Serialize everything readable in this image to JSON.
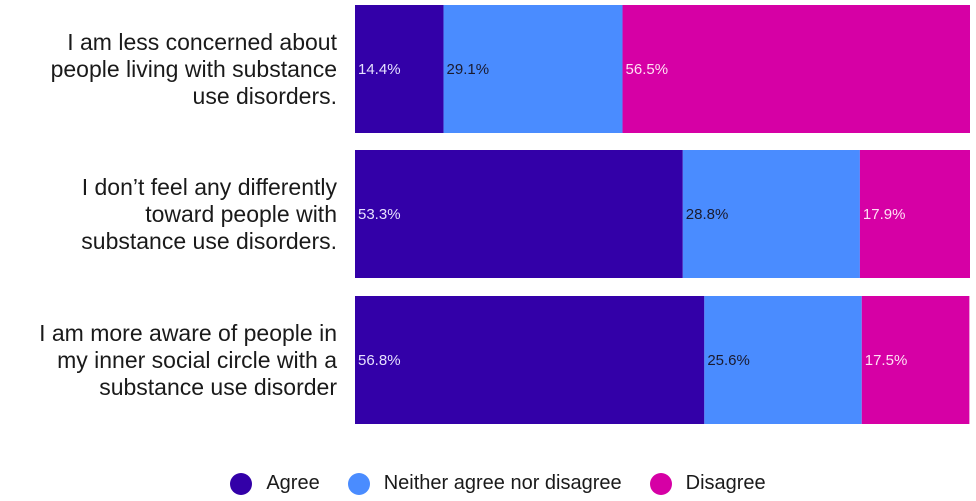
{
  "chart_data": {
    "type": "bar",
    "orientation": "horizontal",
    "stacked": true,
    "percent": true,
    "categories": [
      [
        "I am less concerned about",
        "people living with substance",
        "use disorders."
      ],
      [
        "I don’t feel any differently",
        "toward people with",
        "substance use disorders."
      ],
      [
        "I am more aware of people in",
        "my inner social circle with a",
        "substance use disorder"
      ]
    ],
    "series": [
      {
        "name": "Agree",
        "color": "#3300a8",
        "label_color": "#e6e0ff",
        "values": [
          14.4,
          53.3,
          56.8
        ],
        "labels": [
          "14.4%",
          "53.3%",
          "56.8%"
        ]
      },
      {
        "name": "Neither agree nor disagree",
        "color": "#4a8cff",
        "label_color": "#1a1a2e",
        "values": [
          29.1,
          28.8,
          25.6
        ],
        "labels": [
          "29.1%",
          "28.8%",
          "25.6%"
        ]
      },
      {
        "name": "Disagree",
        "color": "#d600a5",
        "label_color": "#ffe0f4",
        "values": [
          56.5,
          17.9,
          17.5
        ],
        "labels": [
          "56.5%",
          "17.9%",
          "17.5%"
        ]
      }
    ],
    "xlim": [
      0,
      100
    ],
    "legend_position": "bottom",
    "grid": false
  }
}
